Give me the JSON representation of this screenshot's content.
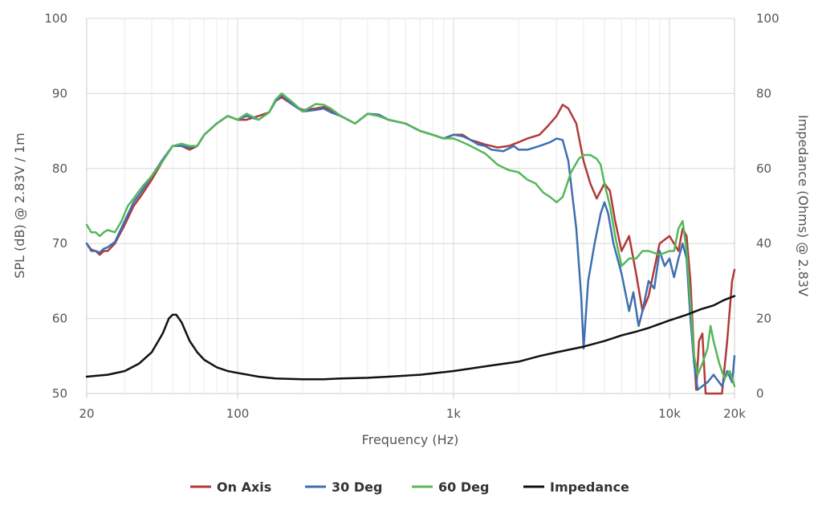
{
  "chart_data": {
    "type": "line",
    "xlabel": "Frequency (Hz)",
    "ylabel": "SPL (dB) @ 2.83V / 1m",
    "y2label": "Impedance (Ohms) @ 2.83V",
    "xscale": "log",
    "xlim": [
      20,
      20000
    ],
    "ylim": [
      50,
      100
    ],
    "y2lim": [
      0,
      100
    ],
    "xticks": [
      {
        "value": 20,
        "label": "20"
      },
      {
        "value": 100,
        "label": "100"
      },
      {
        "value": 1000,
        "label": "1k"
      },
      {
        "value": 10000,
        "label": "10k"
      },
      {
        "value": 20000,
        "label": "20k"
      }
    ],
    "yticks": [
      {
        "value": 50,
        "label": "50"
      },
      {
        "value": 60,
        "label": "60"
      },
      {
        "value": 70,
        "label": "70"
      },
      {
        "value": 80,
        "label": "80"
      },
      {
        "value": 90,
        "label": "90"
      },
      {
        "value": 100,
        "label": "100"
      }
    ],
    "y2ticks": [
      {
        "value": 0,
        "label": "0"
      },
      {
        "value": 20,
        "label": "20"
      },
      {
        "value": 40,
        "label": "40"
      },
      {
        "value": 60,
        "label": "60"
      },
      {
        "value": 80,
        "label": "80"
      },
      {
        "value": 100,
        "label": "100"
      }
    ],
    "grid": true,
    "legend_position": "bottom",
    "series": [
      {
        "name": "On Axis",
        "color": "#b03a3a",
        "axis": "left",
        "points": [
          [
            20,
            70
          ],
          [
            21,
            69.2
          ],
          [
            22,
            69
          ],
          [
            23,
            68.5
          ],
          [
            24,
            69
          ],
          [
            25,
            69
          ],
          [
            27,
            70
          ],
          [
            30,
            72.5
          ],
          [
            33,
            75
          ],
          [
            36,
            76.5
          ],
          [
            40,
            78.5
          ],
          [
            45,
            81
          ],
          [
            50,
            83
          ],
          [
            55,
            83
          ],
          [
            60,
            82.5
          ],
          [
            65,
            83
          ],
          [
            70,
            84.5
          ],
          [
            80,
            86
          ],
          [
            90,
            87
          ],
          [
            100,
            86.5
          ],
          [
            110,
            86.5
          ],
          [
            125,
            87
          ],
          [
            140,
            87.5
          ],
          [
            150,
            89
          ],
          [
            160,
            89.5
          ],
          [
            180,
            88.5
          ],
          [
            200,
            87.8
          ],
          [
            230,
            88
          ],
          [
            250,
            88.2
          ],
          [
            270,
            87.8
          ],
          [
            300,
            87
          ],
          [
            350,
            86
          ],
          [
            400,
            87.3
          ],
          [
            450,
            87
          ],
          [
            500,
            86.5
          ],
          [
            600,
            86
          ],
          [
            700,
            85
          ],
          [
            800,
            84.5
          ],
          [
            900,
            84
          ],
          [
            1000,
            84.5
          ],
          [
            1100,
            84.5
          ],
          [
            1200,
            83.8
          ],
          [
            1300,
            83.5
          ],
          [
            1400,
            83.2
          ],
          [
            1500,
            83
          ],
          [
            1600,
            82.8
          ],
          [
            1800,
            83
          ],
          [
            2000,
            83.5
          ],
          [
            2200,
            84
          ],
          [
            2500,
            84.5
          ],
          [
            2700,
            85.5
          ],
          [
            3000,
            87
          ],
          [
            3200,
            88.5
          ],
          [
            3400,
            88
          ],
          [
            3700,
            86
          ],
          [
            4000,
            81
          ],
          [
            4300,
            78
          ],
          [
            4600,
            76
          ],
          [
            5000,
            78
          ],
          [
            5300,
            77
          ],
          [
            5600,
            73
          ],
          [
            6000,
            69
          ],
          [
            6500,
            71
          ],
          [
            7000,
            66
          ],
          [
            7500,
            61
          ],
          [
            8000,
            63
          ],
          [
            9000,
            70
          ],
          [
            10000,
            71
          ],
          [
            10500,
            70
          ],
          [
            11000,
            69
          ],
          [
            11500,
            72
          ],
          [
            12000,
            71
          ],
          [
            12500,
            65
          ],
          [
            13000,
            55
          ],
          [
            13300,
            50.5
          ],
          [
            13700,
            57
          ],
          [
            14200,
            58
          ],
          [
            14700,
            50
          ],
          [
            15500,
            50
          ],
          [
            16500,
            50
          ],
          [
            17500,
            50
          ],
          [
            18500,
            57
          ],
          [
            19500,
            65
          ],
          [
            20000,
            66.5
          ]
        ]
      },
      {
        "name": "30 Deg",
        "color": "#3e6fb0",
        "axis": "left",
        "points": [
          [
            20,
            70
          ],
          [
            21,
            69
          ],
          [
            22,
            69
          ],
          [
            23,
            68.8
          ],
          [
            24,
            69.3
          ],
          [
            25,
            69.5
          ],
          [
            27,
            70.2
          ],
          [
            30,
            73
          ],
          [
            33,
            75.5
          ],
          [
            36,
            77
          ],
          [
            40,
            79
          ],
          [
            45,
            81.2
          ],
          [
            50,
            83
          ],
          [
            55,
            83
          ],
          [
            60,
            82.8
          ],
          [
            65,
            83
          ],
          [
            70,
            84.5
          ],
          [
            80,
            86
          ],
          [
            90,
            87
          ],
          [
            100,
            86.5
          ],
          [
            110,
            87
          ],
          [
            125,
            86.5
          ],
          [
            140,
            87.5
          ],
          [
            150,
            89
          ],
          [
            160,
            89.8
          ],
          [
            180,
            88.5
          ],
          [
            200,
            87.6
          ],
          [
            230,
            87.8
          ],
          [
            250,
            88
          ],
          [
            270,
            87.5
          ],
          [
            300,
            87
          ],
          [
            350,
            86
          ],
          [
            400,
            87.3
          ],
          [
            450,
            87.2
          ],
          [
            500,
            86.5
          ],
          [
            600,
            86
          ],
          [
            700,
            85
          ],
          [
            800,
            84.5
          ],
          [
            900,
            84
          ],
          [
            1000,
            84.5
          ],
          [
            1100,
            84.3
          ],
          [
            1200,
            83.8
          ],
          [
            1300,
            83.2
          ],
          [
            1400,
            83
          ],
          [
            1500,
            82.5
          ],
          [
            1700,
            82.3
          ],
          [
            1900,
            83
          ],
          [
            2000,
            82.5
          ],
          [
            2200,
            82.5
          ],
          [
            2500,
            83
          ],
          [
            2800,
            83.5
          ],
          [
            3000,
            84
          ],
          [
            3200,
            83.8
          ],
          [
            3400,
            81
          ],
          [
            3700,
            72
          ],
          [
            3900,
            63
          ],
          [
            4000,
            56
          ],
          [
            4200,
            65
          ],
          [
            4500,
            70
          ],
          [
            4800,
            74
          ],
          [
            5000,
            75.5
          ],
          [
            5200,
            74
          ],
          [
            5500,
            70
          ],
          [
            6000,
            66
          ],
          [
            6500,
            61
          ],
          [
            6800,
            63.5
          ],
          [
            7200,
            59
          ],
          [
            7500,
            61
          ],
          [
            8000,
            65
          ],
          [
            8500,
            64
          ],
          [
            9000,
            69
          ],
          [
            9500,
            67
          ],
          [
            10000,
            68
          ],
          [
            10500,
            65.5
          ],
          [
            11000,
            68
          ],
          [
            11500,
            70
          ],
          [
            12000,
            68
          ],
          [
            12500,
            60
          ],
          [
            13000,
            54
          ],
          [
            13500,
            50.5
          ],
          [
            14200,
            51
          ],
          [
            15000,
            51.5
          ],
          [
            16000,
            52.5
          ],
          [
            17500,
            51
          ],
          [
            18500,
            53
          ],
          [
            19500,
            51.5
          ],
          [
            20000,
            55
          ]
        ]
      },
      {
        "name": "60 Deg",
        "color": "#55b85a",
        "axis": "left",
        "points": [
          [
            20,
            72.5
          ],
          [
            21,
            71.5
          ],
          [
            22,
            71.5
          ],
          [
            23,
            71
          ],
          [
            24,
            71.5
          ],
          [
            25,
            71.8
          ],
          [
            27,
            71.5
          ],
          [
            29,
            73
          ],
          [
            31,
            75
          ],
          [
            33,
            76
          ],
          [
            36,
            77.5
          ],
          [
            40,
            79
          ],
          [
            45,
            81
          ],
          [
            50,
            83
          ],
          [
            55,
            83.3
          ],
          [
            60,
            83
          ],
          [
            65,
            83
          ],
          [
            70,
            84.5
          ],
          [
            80,
            86
          ],
          [
            90,
            87
          ],
          [
            100,
            86.5
          ],
          [
            110,
            87.3
          ],
          [
            125,
            86.5
          ],
          [
            140,
            87.5
          ],
          [
            150,
            89.2
          ],
          [
            160,
            90
          ],
          [
            180,
            88.8
          ],
          [
            200,
            87.6
          ],
          [
            230,
            88.6
          ],
          [
            250,
            88.5
          ],
          [
            270,
            88
          ],
          [
            300,
            87
          ],
          [
            350,
            86
          ],
          [
            400,
            87.3
          ],
          [
            450,
            87
          ],
          [
            500,
            86.5
          ],
          [
            600,
            86
          ],
          [
            700,
            85
          ],
          [
            800,
            84.5
          ],
          [
            900,
            84
          ],
          [
            1000,
            84
          ],
          [
            1100,
            83.5
          ],
          [
            1200,
            83
          ],
          [
            1400,
            82
          ],
          [
            1600,
            80.5
          ],
          [
            1800,
            79.8
          ],
          [
            2000,
            79.5
          ],
          [
            2200,
            78.5
          ],
          [
            2400,
            78
          ],
          [
            2600,
            76.8
          ],
          [
            2800,
            76.2
          ],
          [
            3000,
            75.5
          ],
          [
            3200,
            76.2
          ],
          [
            3500,
            79.5
          ],
          [
            3800,
            81.3
          ],
          [
            4000,
            81.8
          ],
          [
            4300,
            81.8
          ],
          [
            4600,
            81.3
          ],
          [
            4800,
            80.5
          ],
          [
            5000,
            78
          ],
          [
            5300,
            75
          ],
          [
            5600,
            71
          ],
          [
            6000,
            67
          ],
          [
            6500,
            68
          ],
          [
            7000,
            68
          ],
          [
            7500,
            69
          ],
          [
            8000,
            69
          ],
          [
            9000,
            68.5
          ],
          [
            10000,
            69
          ],
          [
            10500,
            69
          ],
          [
            11000,
            72
          ],
          [
            11500,
            73
          ],
          [
            12000,
            69
          ],
          [
            12500,
            62
          ],
          [
            13000,
            55
          ],
          [
            13500,
            52.5
          ],
          [
            14200,
            54
          ],
          [
            15000,
            56
          ],
          [
            15500,
            59
          ],
          [
            16000,
            57
          ],
          [
            17000,
            54
          ],
          [
            18000,
            52
          ],
          [
            19000,
            53
          ],
          [
            19500,
            52
          ],
          [
            20000,
            51
          ]
        ]
      },
      {
        "name": "Impedance",
        "color": "#111111",
        "axis": "right",
        "points": [
          [
            20,
            4.5
          ],
          [
            25,
            5
          ],
          [
            30,
            6
          ],
          [
            35,
            8
          ],
          [
            40,
            11
          ],
          [
            45,
            16
          ],
          [
            48,
            20
          ],
          [
            50,
            21
          ],
          [
            52,
            21
          ],
          [
            55,
            19
          ],
          [
            60,
            14
          ],
          [
            65,
            11
          ],
          [
            70,
            9
          ],
          [
            80,
            7
          ],
          [
            90,
            6
          ],
          [
            100,
            5.5
          ],
          [
            125,
            4.5
          ],
          [
            150,
            4
          ],
          [
            200,
            3.8
          ],
          [
            250,
            3.8
          ],
          [
            300,
            4
          ],
          [
            400,
            4.2
          ],
          [
            500,
            4.5
          ],
          [
            700,
            5
          ],
          [
            1000,
            6
          ],
          [
            1500,
            7.5
          ],
          [
            2000,
            8.5
          ],
          [
            2500,
            10
          ],
          [
            3000,
            11
          ],
          [
            4000,
            12.5
          ],
          [
            5000,
            14
          ],
          [
            6000,
            15.5
          ],
          [
            7000,
            16.5
          ],
          [
            8000,
            17.5
          ],
          [
            10000,
            19.5
          ],
          [
            12000,
            21
          ],
          [
            14000,
            22.5
          ],
          [
            16000,
            23.5
          ],
          [
            18000,
            25
          ],
          [
            20000,
            26
          ]
        ]
      }
    ]
  }
}
